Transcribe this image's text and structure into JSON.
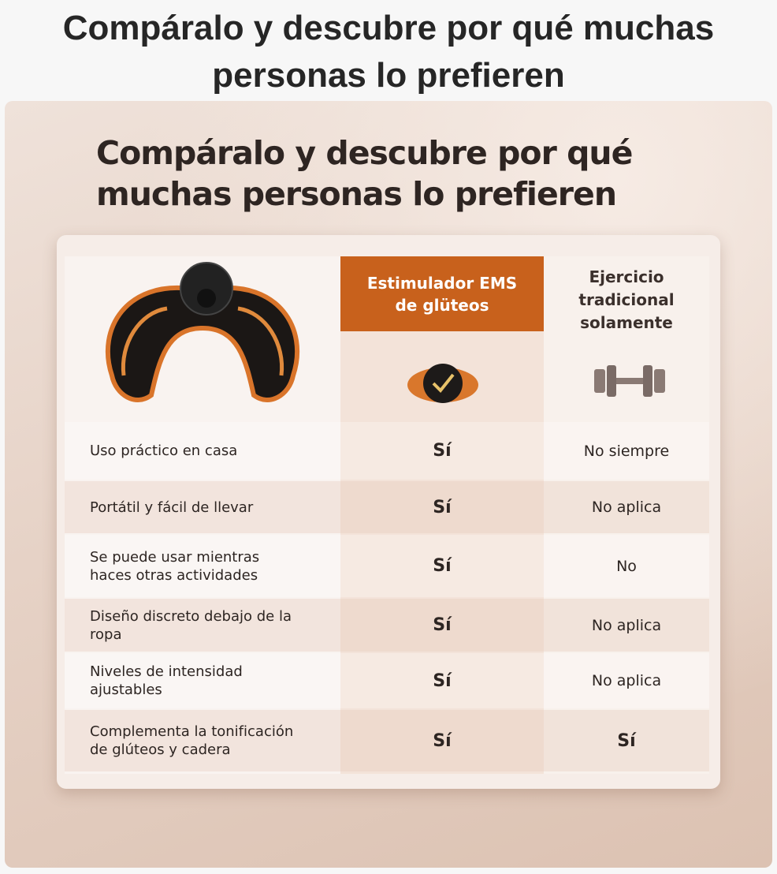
{
  "header": {
    "title": "Compáralo y descubre por qué muchas personas lo prefieren"
  },
  "image": {
    "title": "Compáralo y descubre por qué muchas personas lo prefieren"
  },
  "table": {
    "columns": [
      "Estimulador EMS de glüteos",
      "Ejercicio tradicional solamente"
    ],
    "rows": [
      [
        "Uso práctico en casa",
        "Sí",
        "No siempre"
      ],
      [
        "Portátil y fácil de llevar",
        "Sí",
        "No aplica"
      ],
      [
        "Se puede usar mientras haces otras actividades",
        "Sí",
        "No"
      ],
      [
        "Diseño discreto debajo de la ropa",
        "Sí",
        "No aplica"
      ],
      [
        "Niveles de intensidad ajustables",
        "Sí",
        "No aplica"
      ],
      [
        "Complementa la tonificación de glúteos y cadera",
        "Sí",
        "Sí"
      ]
    ]
  }
}
